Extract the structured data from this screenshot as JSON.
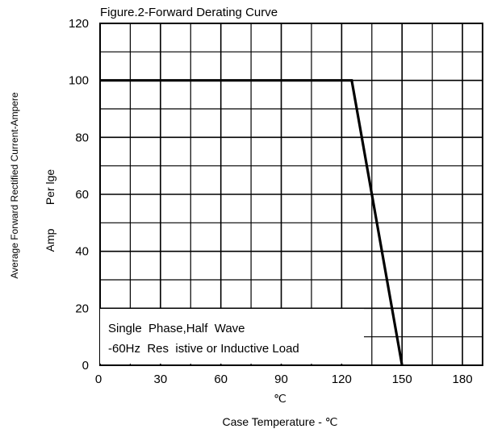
{
  "chart_data": {
    "type": "line",
    "title": "Figure.2-Forward Derating Curve",
    "xlabel": "Case Temperature - ℃",
    "xlabel_unit_above": "℃",
    "ylabel_main": "Average Forward Rectified Current-Ampere",
    "ylabel_line2": "Per lge",
    "ylabel_line3": "Amp",
    "xlim": [
      0,
      190
    ],
    "ylim": [
      0,
      120
    ],
    "x_ticks": [
      0,
      30,
      60,
      90,
      120,
      150,
      180
    ],
    "y_ticks": [
      0,
      20,
      40,
      60,
      80,
      100,
      120
    ],
    "grid": true,
    "series": [
      {
        "x": [
          0,
          125,
          150
        ],
        "y": [
          100,
          100,
          0
        ]
      }
    ],
    "annotations": [
      "Single  Phase,Half  Wave",
      "-60Hz  Res  istive or Inductive Load"
    ]
  },
  "colors": {
    "line": "#000000",
    "grid": "#000000",
    "background": "#ffffff"
  }
}
